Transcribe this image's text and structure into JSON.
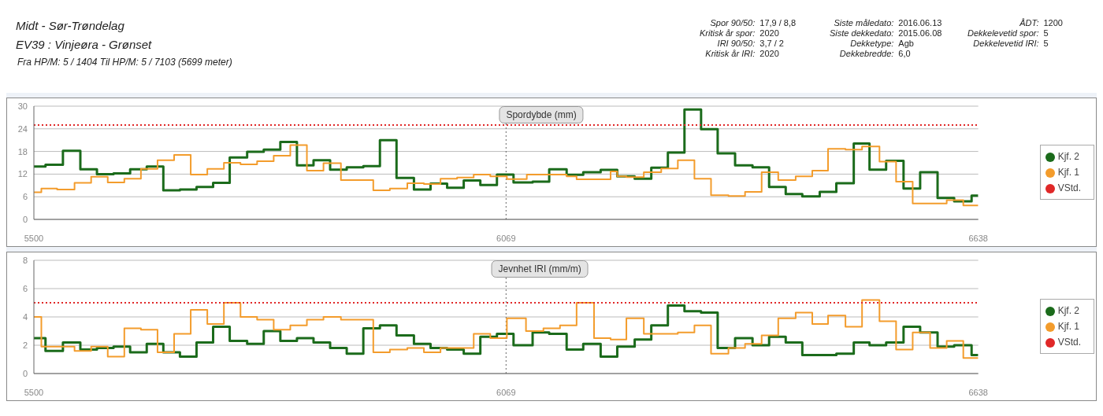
{
  "chart_data": [
    {
      "type": "other",
      "title": "Midt - Sør-Trøndelag",
      "subtitle": "EV39 : Vinjeøra - Grønset",
      "annotations": [
        "Fra HP/M: 5 / 1404 Til HP/M: 5 / 7103 (5699 meter)",
        "Spor 90/50:",
        "17,9 / 8,8",
        "Kritisk år spor:",
        "2020",
        "IRI 90/50:",
        "3,7 / 2",
        "Kritisk år IRI:",
        "2020",
        "Siste måledato:",
        "2016.06.13",
        "Siste dekkedato:",
        "2015.06.08",
        "Dekketype:",
        "Agb",
        "Dekkebredde:",
        "6,0",
        "ÅDT:",
        "1200",
        "Dekkelevetid spor:",
        "5",
        "Dekkelevetid IRI:",
        "5"
      ]
    },
    {
      "type": "step",
      "title": "Spordybde (mm)",
      "xlim": [
        5500,
        6638
      ],
      "xticks": [
        5500,
        6069,
        6638
      ],
      "ylim": [
        0,
        30
      ],
      "yticks": [
        0,
        6,
        12,
        18,
        24,
        30
      ],
      "grid": "y",
      "legend": "right",
      "ref_lines": [
        {
          "axis": "x",
          "value": 6069,
          "color": "#666666",
          "line_style": "dotted"
        }
      ],
      "series": [
        {
          "name": "Kjf. 2",
          "color": "#1b6b1b",
          "x": [
            5500,
            5514,
            5535,
            5556,
            5576,
            5596,
            5616,
            5636,
            5656,
            5676,
            5696,
            5716,
            5736,
            5757,
            5777,
            5797,
            5817,
            5837,
            5857,
            5877,
            5897,
            5917,
            5937,
            5958,
            5978,
            5998,
            6018,
            6038,
            6058,
            6078,
            6101,
            6121,
            6142,
            6162,
            6183,
            6203,
            6224,
            6244,
            6264,
            6284,
            6304,
            6324,
            6345,
            6366,
            6386,
            6406,
            6426,
            6447,
            6467,
            6488,
            6507,
            6527,
            6548,
            6568,
            6589,
            6609,
            6630,
            6638
          ],
          "values": [
            14,
            14.5,
            18.2,
            13.3,
            12,
            12.2,
            13.3,
            14,
            7.7,
            7.9,
            8.6,
            9.7,
            16.4,
            17.9,
            18.5,
            20.5,
            14.3,
            15.7,
            13.2,
            13.8,
            14.1,
            21,
            11,
            7.9,
            9.5,
            8.4,
            10.3,
            9.1,
            11.9,
            9.8,
            10,
            13.3,
            11.8,
            12.5,
            13.1,
            11.4,
            10.8,
            13.7,
            17.7,
            29.1,
            23.9,
            17.5,
            14.3,
            13.8,
            8.6,
            6.7,
            6.1,
            7.3,
            9.6,
            20.1,
            13.2,
            15.5,
            8.2,
            12.5,
            5.7,
            4.8,
            6.3,
            6.3
          ]
        },
        {
          "name": "Kjf. 1",
          "color": "#f39c2c",
          "x": [
            5500,
            5509,
            5528,
            5549,
            5569,
            5589,
            5609,
            5629,
            5649,
            5669,
            5689,
            5709,
            5729,
            5749,
            5769,
            5789,
            5809,
            5829,
            5849,
            5870,
            5909,
            5929,
            5950,
            5970,
            5990,
            6010,
            6030,
            6050,
            6070,
            6094,
            6142,
            6154,
            6195,
            6203,
            6214,
            6235,
            6256,
            6276,
            6296,
            6316,
            6337,
            6357,
            6377,
            6397,
            6418,
            6438,
            6457,
            6478,
            6498,
            6519,
            6539,
            6559,
            6600,
            6620,
            6638
          ],
          "values": [
            7.2,
            8.2,
            7.9,
            9.7,
            11.3,
            9.8,
            10.8,
            13.4,
            15.7,
            17.1,
            11.9,
            13.4,
            15,
            14.6,
            15.4,
            16.9,
            19.7,
            12.9,
            14.9,
            10.4,
            7.7,
            8.2,
            9.6,
            9.4,
            10.8,
            11.1,
            11.9,
            11.4,
            10.7,
            11.9,
            11.4,
            10.6,
            12.7,
            11.4,
            11.2,
            12.5,
            13.5,
            15.7,
            10.8,
            6.4,
            6.2,
            7.3,
            12.5,
            10.4,
            11.4,
            12.9,
            18.7,
            18.5,
            19.3,
            15.3,
            10,
            4.2,
            5.1,
            3.7,
            3.7
          ]
        },
        {
          "name": "VStd.",
          "color": "#e02828",
          "type": "line",
          "line_style": "dotted",
          "x": [
            5500,
            6638
          ],
          "values": [
            25,
            25
          ]
        }
      ]
    },
    {
      "type": "step",
      "title": "Jevnhet IRI (mm/m)",
      "xlim": [
        5500,
        6638
      ],
      "xticks": [
        5500,
        6069,
        6638
      ],
      "ylim": [
        0,
        8
      ],
      "yticks": [
        0,
        2,
        4,
        6,
        8
      ],
      "grid": "y",
      "legend": "right",
      "ref_lines": [
        {
          "axis": "x",
          "value": 6069,
          "color": "#666666",
          "line_style": "dotted"
        }
      ],
      "series": [
        {
          "name": "Kjf. 2",
          "color": "#1b6b1b",
          "x": [
            5500,
            5514,
            5535,
            5556,
            5576,
            5596,
            5616,
            5636,
            5656,
            5676,
            5696,
            5716,
            5736,
            5757,
            5777,
            5797,
            5817,
            5837,
            5857,
            5877,
            5897,
            5917,
            5937,
            5958,
            5978,
            5998,
            6018,
            6038,
            6058,
            6078,
            6101,
            6121,
            6142,
            6162,
            6183,
            6203,
            6224,
            6244,
            6264,
            6284,
            6304,
            6324,
            6345,
            6366,
            6386,
            6406,
            6426,
            6447,
            6467,
            6488,
            6507,
            6527,
            6548,
            6568,
            6589,
            6609,
            6630,
            6638
          ],
          "values": [
            2.5,
            1.6,
            2.2,
            1.7,
            1.8,
            1.9,
            1.5,
            2.1,
            1.5,
            1.2,
            2.2,
            3.3,
            2.3,
            2.1,
            3,
            2.3,
            2.5,
            2.2,
            1.8,
            1.4,
            3.2,
            3.4,
            2.7,
            2.1,
            1.8,
            1.7,
            1.4,
            2.6,
            2.8,
            2,
            2.9,
            2.8,
            1.7,
            2.1,
            1.2,
            1.9,
            2.4,
            3.4,
            4.8,
            4.4,
            4.3,
            1.8,
            2.5,
            2,
            2.6,
            2.2,
            1.3,
            1.3,
            1.4,
            2.2,
            2,
            2.2,
            3.3,
            2.9,
            1.9,
            2,
            1.3,
            1.3
          ]
        },
        {
          "name": "Kjf. 1",
          "color": "#f39c2c",
          "x": [
            5500,
            5509,
            5549,
            5569,
            5589,
            5609,
            5629,
            5649,
            5669,
            5689,
            5709,
            5729,
            5749,
            5769,
            5789,
            5809,
            5829,
            5849,
            5870,
            5909,
            5929,
            5950,
            5970,
            5990,
            6030,
            6050,
            6070,
            6093,
            6114,
            6134,
            6154,
            6175,
            6195,
            6214,
            6235,
            6256,
            6276,
            6296,
            6316,
            6337,
            6357,
            6377,
            6397,
            6418,
            6438,
            6457,
            6478,
            6498,
            6519,
            6539,
            6559,
            6580,
            6600,
            6620,
            6638
          ],
          "values": [
            4,
            1.9,
            1.6,
            1.9,
            1.2,
            3.2,
            3.1,
            1.5,
            2.8,
            4.5,
            3.5,
            5,
            4,
            3.8,
            3.1,
            3.4,
            3.8,
            4,
            3.8,
            1.5,
            1.7,
            1.8,
            1.5,
            1.8,
            2.8,
            2.5,
            3.9,
            3,
            3.2,
            3.4,
            5,
            2.5,
            2.4,
            3.9,
            2.8,
            2.8,
            2.9,
            3.4,
            1.4,
            1.8,
            2.1,
            2.7,
            3.9,
            4.3,
            3.5,
            4.1,
            3.3,
            5.2,
            3.7,
            1.7,
            2.9,
            1.8,
            2.3,
            1.1,
            1.1
          ]
        },
        {
          "name": "VStd.",
          "color": "#e02828",
          "type": "line",
          "line_style": "dotted",
          "x": [
            5500,
            6638
          ],
          "values": [
            5,
            5
          ]
        }
      ]
    }
  ]
}
